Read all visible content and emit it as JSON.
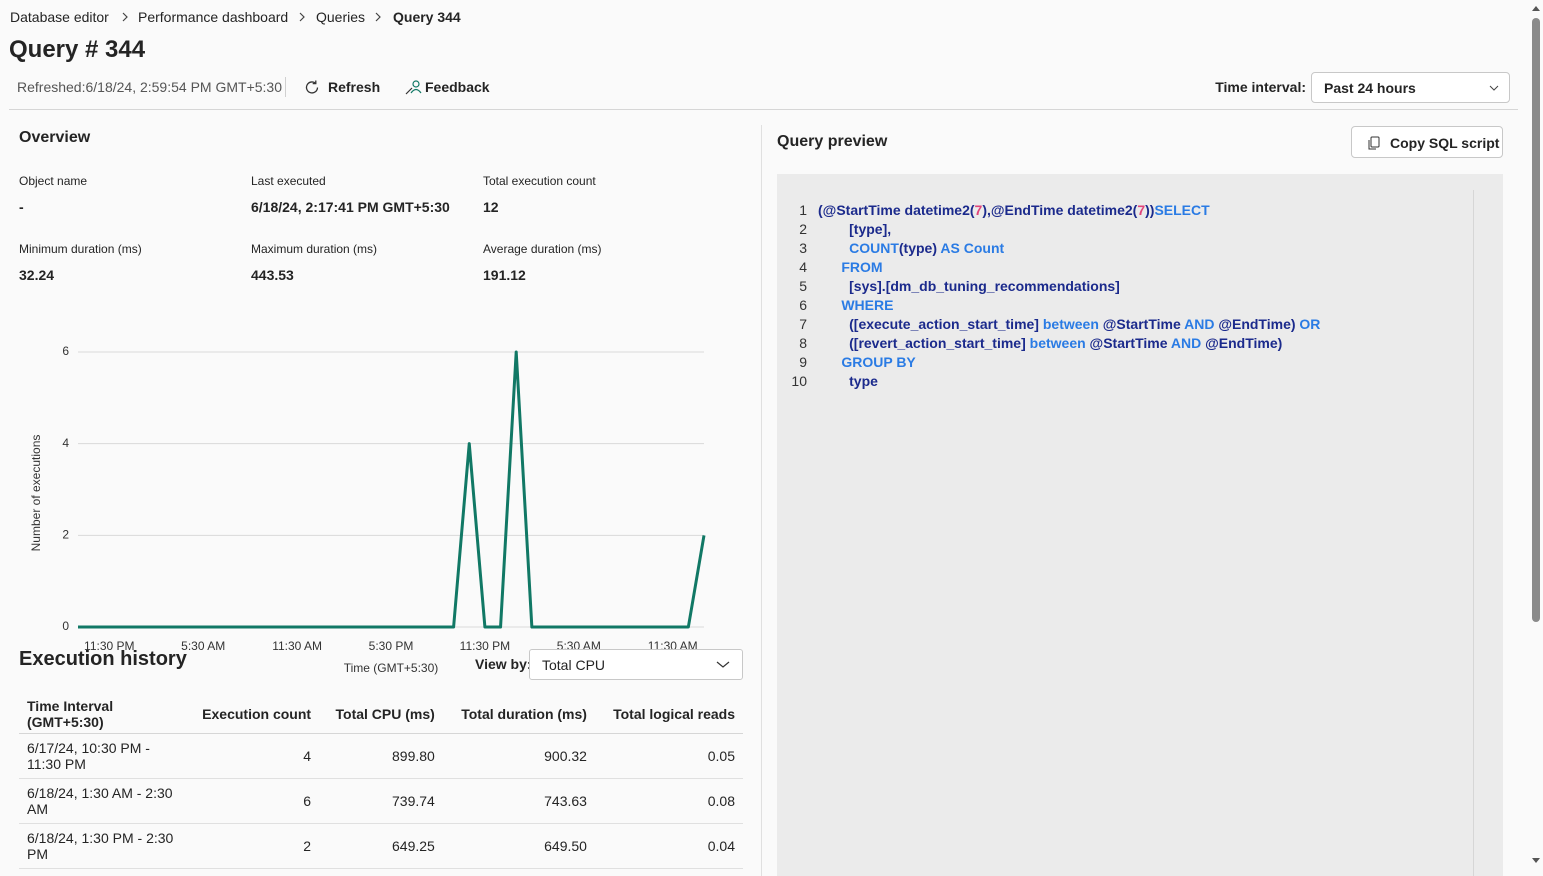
{
  "breadcrumb": [
    "Database editor",
    "Performance dashboard",
    "Queries",
    "Query 344"
  ],
  "title": "Query # 344",
  "toolbar": {
    "refreshed": "Refreshed:6/18/24, 2:59:54 PM GMT+5:30",
    "refresh": "Refresh",
    "feedback": "Feedback",
    "time_interval_label": "Time interval:",
    "time_interval_value": "Past 24 hours"
  },
  "overview": {
    "title": "Overview",
    "fields": [
      {
        "label": "Object name",
        "value": "-"
      },
      {
        "label": "Last executed",
        "value": "6/18/24, 2:17:41 PM GMT+5:30"
      },
      {
        "label": "Total execution count",
        "value": "12"
      },
      {
        "label": "Minimum duration (ms)",
        "value": "32.24"
      },
      {
        "label": "Maximum duration (ms)",
        "value": "443.53"
      },
      {
        "label": "Average duration (ms)",
        "value": "191.12"
      }
    ]
  },
  "chart_data": {
    "type": "line",
    "ylabel": "Number of executions",
    "xlabel": "Time (GMT+5:30)",
    "categories": [
      null,
      null,
      "11:30 PM",
      null,
      null,
      null,
      null,
      null,
      "5:30 AM",
      null,
      null,
      null,
      null,
      null,
      "11:30 AM",
      null,
      null,
      null,
      null,
      null,
      "5:30 PM",
      null,
      null,
      null,
      null,
      null,
      "11:30 PM",
      null,
      null,
      null,
      null,
      null,
      "5:30 AM",
      null,
      null,
      null,
      null,
      null,
      "11:30 AM",
      null,
      null
    ],
    "values": [
      0,
      0,
      0,
      0,
      0,
      0,
      0,
      0,
      0,
      0,
      0,
      0,
      0,
      0,
      0,
      0,
      0,
      0,
      0,
      0,
      0,
      0,
      0,
      0,
      0,
      4,
      0,
      0,
      6,
      0,
      0,
      0,
      0,
      0,
      0,
      0,
      0,
      0,
      0,
      0,
      2
    ],
    "color": "#117865",
    "ylim": [
      0,
      6
    ],
    "yticks": [
      0,
      2,
      4,
      6
    ],
    "grid": true
  },
  "history": {
    "title": "Execution history",
    "view_by_label": "View by:",
    "view_by_value": "Total CPU",
    "table": {
      "headers": [
        "Time Interval (GMT+5:30)",
        "Execution count",
        "Total CPU (ms)",
        "Total duration (ms)",
        "Total logical reads"
      ],
      "rows": [
        [
          "6/17/24, 10:30 PM - 11:30 PM",
          "4",
          "899.80",
          "900.32",
          "0.05"
        ],
        [
          "6/18/24, 1:30 AM - 2:30 AM",
          "6",
          "739.74",
          "743.63",
          "0.08"
        ],
        [
          "6/18/24, 1:30 PM - 2:30 PM",
          "2",
          "649.25",
          "649.50",
          "0.04"
        ]
      ]
    }
  },
  "preview": {
    "title": "Query preview",
    "copy_button": "Copy SQL script",
    "lines": [
      {
        "number": 1,
        "segments": [
          {
            "text": "(@StartTime datetime2(",
            "color": "#1b2a8c"
          },
          {
            "text": "7",
            "color": "#e0447a"
          },
          {
            "text": "),@EndTime datetime2(",
            "color": "#1b2a8c"
          },
          {
            "text": "7",
            "color": "#e0447a"
          },
          {
            "text": "))",
            "color": "#1b2a8c"
          },
          {
            "text": "SELECT",
            "color": "#2a7be4"
          }
        ]
      },
      {
        "number": 2,
        "segments": [
          {
            "text": "        [type],",
            "color": "#1b2a8c"
          }
        ]
      },
      {
        "number": 3,
        "segments": [
          {
            "text": "        COUNT",
            "color": "#2a7be4"
          },
          {
            "text": "(type)",
            "color": "#1b2a8c"
          },
          {
            "text": " AS Count",
            "color": "#2a7be4"
          }
        ]
      },
      {
        "number": 4,
        "segments": [
          {
            "text": "      FROM",
            "color": "#2a7be4"
          }
        ]
      },
      {
        "number": 5,
        "segments": [
          {
            "text": "        [sys].[dm_db_tuning_recommendations]",
            "color": "#1b2a8c"
          }
        ]
      },
      {
        "number": 6,
        "segments": [
          {
            "text": "      WHERE",
            "color": "#2a7be4"
          }
        ]
      },
      {
        "number": 7,
        "segments": [
          {
            "text": "        ([execute_action_start_time]",
            "color": "#1b2a8c"
          },
          {
            "text": " between ",
            "color": "#2a7be4"
          },
          {
            "text": "@StartTime",
            "color": "#1b2a8c"
          },
          {
            "text": " AND ",
            "color": "#2a7be4"
          },
          {
            "text": "@EndTime)",
            "color": "#1b2a8c"
          },
          {
            "text": " OR",
            "color": "#2a7be4"
          }
        ]
      },
      {
        "number": 8,
        "segments": [
          {
            "text": "        ([revert_action_start_time]",
            "color": "#1b2a8c"
          },
          {
            "text": " between ",
            "color": "#2a7be4"
          },
          {
            "text": "@StartTime",
            "color": "#1b2a8c"
          },
          {
            "text": " AND ",
            "color": "#2a7be4"
          },
          {
            "text": "@EndTime)",
            "color": "#1b2a8c"
          }
        ]
      },
      {
        "number": 9,
        "segments": [
          {
            "text": "      GROUP BY",
            "color": "#2a7be4"
          }
        ]
      },
      {
        "number": 10,
        "segments": [
          {
            "text": "        type",
            "color": "#1b2a8c"
          }
        ]
      }
    ]
  }
}
